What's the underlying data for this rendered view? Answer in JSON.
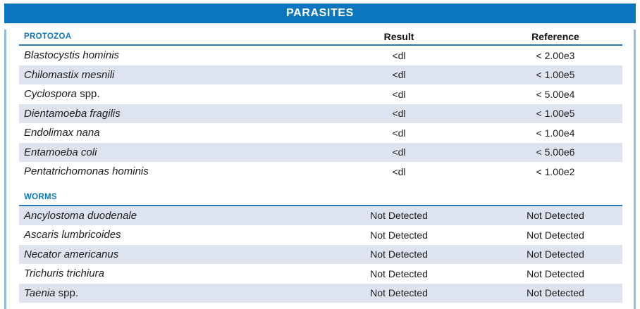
{
  "report": {
    "title": "PARASITES"
  },
  "columns": {
    "result": "Result",
    "reference": "Reference"
  },
  "sections": [
    {
      "label": "PROTOZOA",
      "rows": [
        {
          "name_italic": "Blastocystis hominis",
          "name_suffix": "",
          "result": "<dl",
          "reference": "< 2.00e3"
        },
        {
          "name_italic": "Chilomastix mesnili",
          "name_suffix": "",
          "result": "<dl",
          "reference": "< 1.00e5"
        },
        {
          "name_italic": "Cyclospora",
          "name_suffix": " spp.",
          "result": "<dl",
          "reference": "< 5.00e4"
        },
        {
          "name_italic": "Dientamoeba fragilis",
          "name_suffix": "",
          "result": "<dl",
          "reference": "< 1.00e5"
        },
        {
          "name_italic": "Endolimax nana",
          "name_suffix": "",
          "result": "<dl",
          "reference": "< 1.00e4"
        },
        {
          "name_italic": "Entamoeba coli",
          "name_suffix": "",
          "result": "<dl",
          "reference": "< 5.00e6"
        },
        {
          "name_italic": "Pentatrichomonas hominis",
          "name_suffix": "",
          "result": "<dl",
          "reference": "< 1.00e2"
        }
      ]
    },
    {
      "label": "WORMS",
      "rows": [
        {
          "name_italic": "Ancylostoma duodenale",
          "name_suffix": "",
          "result": "Not Detected",
          "reference": "Not Detected"
        },
        {
          "name_italic": "Ascaris lumbricoides",
          "name_suffix": "",
          "result": "Not Detected",
          "reference": "Not Detected"
        },
        {
          "name_italic": "Necator americanus",
          "name_suffix": "",
          "result": "Not Detected",
          "reference": "Not Detected"
        },
        {
          "name_italic": "Trichuris trichiura",
          "name_suffix": "",
          "result": "Not Detected",
          "reference": "Not Detected"
        },
        {
          "name_italic": "Taenia",
          "name_suffix": " spp.",
          "result": "Not Detected",
          "reference": "Not Detected"
        }
      ]
    }
  ],
  "colors": {
    "header_bar": "#0b76bd",
    "section_label": "#0f76bc",
    "rule": "#2e75b6",
    "row_alt": "#dde4f0",
    "frame_border": "#8fbde6"
  }
}
